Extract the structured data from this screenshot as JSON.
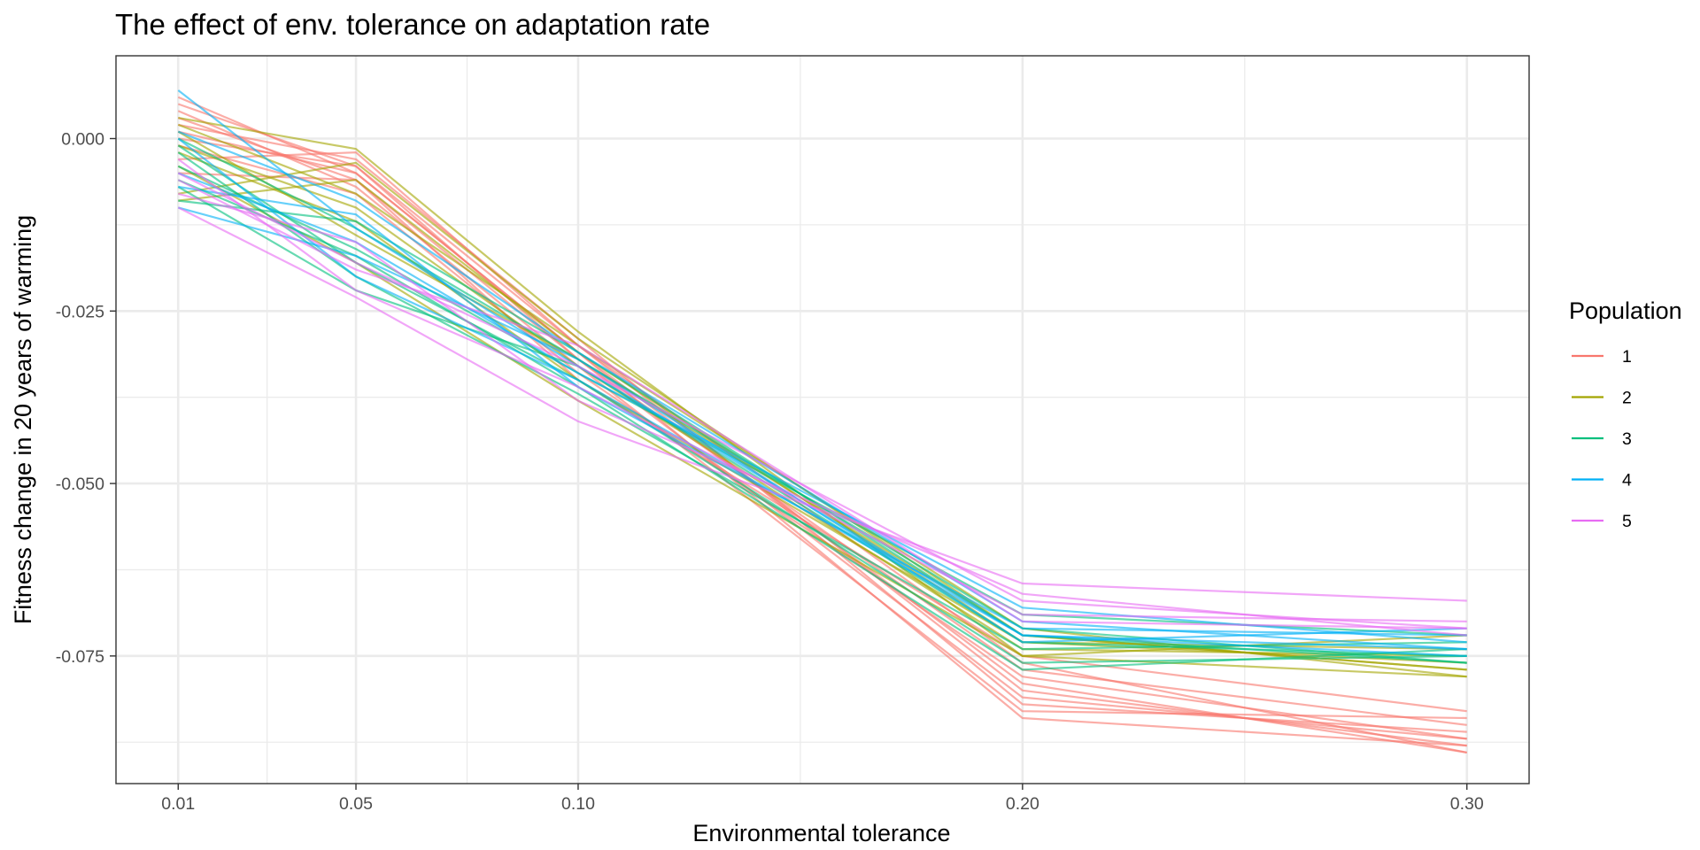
{
  "chart_data": {
    "type": "line",
    "title": "The effect of env. tolerance on adaptation rate",
    "xlabel": "Environmental tolerance",
    "ylabel": "Fitness change in 20 years of warming",
    "x": [
      0.01,
      0.05,
      0.1,
      0.2,
      0.3
    ],
    "x_tick_labels": [
      "0.01",
      "0.05",
      "0.10",
      "0.20",
      "0.30"
    ],
    "y_ticks": [
      0.0,
      -0.025,
      -0.05,
      -0.075
    ],
    "y_tick_labels": [
      "0.000",
      "-0.025",
      "-0.050",
      "-0.075"
    ],
    "xlim": [
      -0.004,
      0.314
    ],
    "ylim": [
      -0.0935,
      0.012
    ],
    "grid": true,
    "legend": {
      "title": "Population",
      "position": "right"
    },
    "colors": {
      "1": "#F8766D",
      "2": "#A3A500",
      "3": "#00BF7D",
      "4": "#00B0F6",
      "5": "#E76BF3"
    },
    "series": [
      {
        "group": "1",
        "values": [
          0.006,
          -0.005,
          -0.031,
          -0.079,
          -0.089
        ]
      },
      {
        "group": "1",
        "values": [
          0.005,
          -0.004,
          -0.03,
          -0.08,
          -0.088
        ]
      },
      {
        "group": "1",
        "values": [
          0.003,
          -0.006,
          -0.032,
          -0.081,
          -0.087
        ]
      },
      {
        "group": "1",
        "values": [
          0.002,
          -0.003,
          -0.029,
          -0.082,
          -0.086
        ]
      },
      {
        "group": "1",
        "values": [
          0.004,
          -0.007,
          -0.033,
          -0.083,
          -0.084
        ]
      },
      {
        "group": "1",
        "values": [
          0.001,
          -0.005,
          -0.031,
          -0.084,
          -0.088
        ]
      },
      {
        "group": "1",
        "values": [
          -0.001,
          -0.008,
          -0.034,
          -0.078,
          -0.087
        ]
      },
      {
        "group": "1",
        "values": [
          -0.003,
          -0.002,
          -0.03,
          -0.076,
          -0.089
        ]
      },
      {
        "group": "1",
        "values": [
          0.0,
          -0.004,
          -0.032,
          -0.077,
          -0.085
        ]
      },
      {
        "group": "1",
        "values": [
          -0.005,
          -0.006,
          -0.035,
          -0.075,
          -0.083
        ]
      },
      {
        "group": "2",
        "values": [
          0.003,
          -0.0015,
          -0.028,
          -0.075,
          -0.078
        ]
      },
      {
        "group": "2",
        "values": [
          -0.008,
          -0.0035,
          -0.029,
          -0.072,
          -0.077
        ]
      },
      {
        "group": "2",
        "values": [
          -0.009,
          -0.006,
          -0.031,
          -0.073,
          -0.076
        ]
      },
      {
        "group": "2",
        "values": [
          -0.001,
          -0.01,
          -0.033,
          -0.074,
          -0.075
        ]
      },
      {
        "group": "2",
        "values": [
          0.002,
          -0.008,
          -0.03,
          -0.071,
          -0.078
        ]
      },
      {
        "group": "2",
        "values": [
          -0.002,
          -0.012,
          -0.035,
          -0.073,
          -0.074
        ]
      },
      {
        "group": "2",
        "values": [
          -0.004,
          -0.018,
          -0.038,
          -0.075,
          -0.072
        ]
      },
      {
        "group": "2",
        "values": [
          0.001,
          -0.014,
          -0.032,
          -0.072,
          -0.077
        ]
      },
      {
        "group": "3",
        "values": [
          -0.001,
          -0.018,
          -0.035,
          -0.076,
          -0.075
        ]
      },
      {
        "group": "3",
        "values": [
          -0.006,
          -0.017,
          -0.036,
          -0.077,
          -0.074
        ]
      },
      {
        "group": "3",
        "values": [
          -0.009,
          -0.012,
          -0.031,
          -0.072,
          -0.076
        ]
      },
      {
        "group": "3",
        "values": [
          -0.002,
          -0.02,
          -0.037,
          -0.074,
          -0.073
        ]
      },
      {
        "group": "3",
        "values": [
          -0.004,
          -0.016,
          -0.034,
          -0.069,
          -0.072
        ]
      },
      {
        "group": "3",
        "values": [
          -0.007,
          -0.022,
          -0.033,
          -0.073,
          -0.075
        ]
      },
      {
        "group": "3",
        "values": [
          0.0,
          -0.013,
          -0.032,
          -0.071,
          -0.076
        ]
      },
      {
        "group": "4",
        "values": [
          0.007,
          -0.013,
          -0.033,
          -0.072,
          -0.075
        ]
      },
      {
        "group": "4",
        "values": [
          0.001,
          -0.009,
          -0.031,
          -0.07,
          -0.074
        ]
      },
      {
        "group": "4",
        "values": [
          -0.005,
          -0.015,
          -0.034,
          -0.068,
          -0.073
        ]
      },
      {
        "group": "4",
        "values": [
          -0.007,
          -0.011,
          -0.036,
          -0.071,
          -0.072
        ]
      },
      {
        "group": "4",
        "values": [
          -0.01,
          -0.017,
          -0.032,
          -0.073,
          -0.071
        ]
      },
      {
        "group": "4",
        "values": [
          0.0,
          -0.02,
          -0.035,
          -0.072,
          -0.074
        ]
      },
      {
        "group": "5",
        "values": [
          -0.01,
          -0.023,
          -0.041,
          -0.0645,
          -0.067
        ]
      },
      {
        "group": "5",
        "values": [
          -0.005,
          -0.018,
          -0.033,
          -0.067,
          -0.071
        ]
      },
      {
        "group": "5",
        "values": [
          -0.003,
          -0.022,
          -0.036,
          -0.069,
          -0.07
        ]
      },
      {
        "group": "5",
        "values": [
          -0.008,
          -0.015,
          -0.038,
          -0.066,
          -0.072
        ]
      },
      {
        "group": "5",
        "values": [
          -0.006,
          -0.019,
          -0.03,
          -0.07,
          -0.071
        ]
      }
    ]
  }
}
